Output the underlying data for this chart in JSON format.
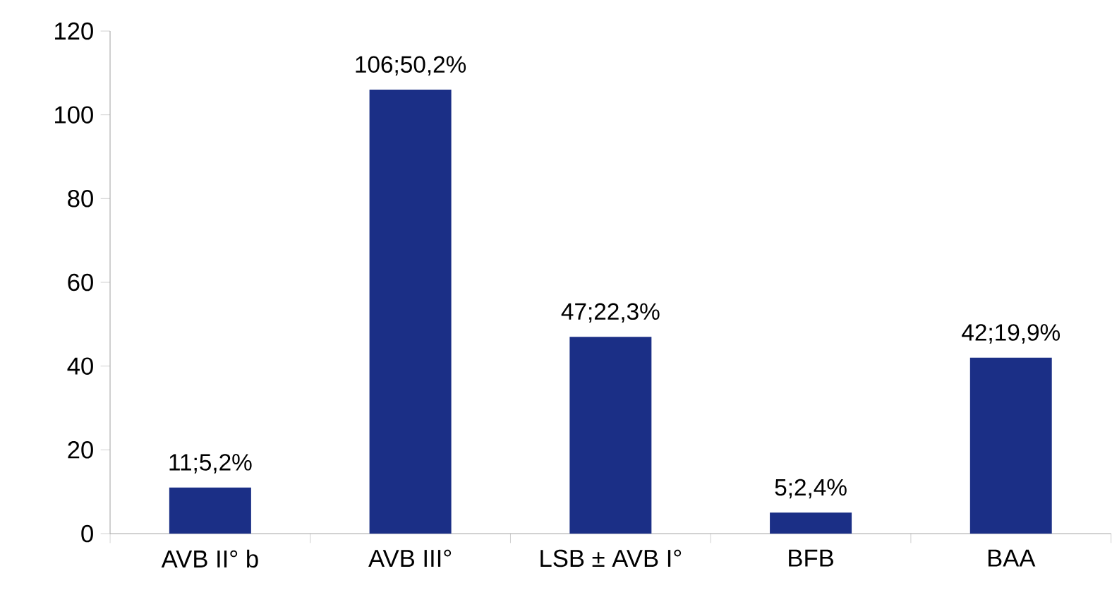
{
  "chart_data": {
    "type": "bar",
    "categories": [
      "AVB II° b",
      "AVB  III°",
      "LSB ± AVB I°",
      "BFB",
      "BAA"
    ],
    "values": [
      11,
      106,
      47,
      5,
      42
    ],
    "value_labels": [
      "11;5,2%",
      "106;50,2%",
      "47;22,3%",
      "5;2,4%",
      "42;19,9%"
    ],
    "color": "#1b2f86",
    "ylim": [
      0,
      120
    ],
    "yticks": [
      0,
      20,
      40,
      60,
      80,
      100,
      120
    ],
    "grid": false
  }
}
